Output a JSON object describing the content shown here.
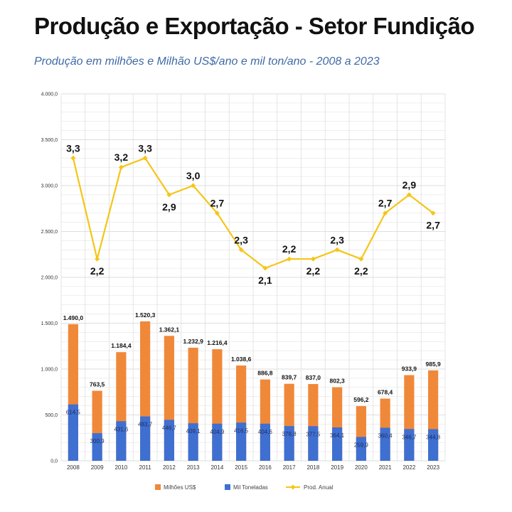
{
  "title": "Produção e Exportação - Setor Fundição",
  "subtitle": "Produção em milhões e Milhão US$/ano e mil ton/ano -  2008 a 2023",
  "colors": {
    "milhoes": "#f0883a",
    "toneladas": "#3f6fd0",
    "prod": "#f5c518",
    "grid": "#dedede"
  },
  "chart_data": {
    "type": "bar",
    "stacked": true,
    "categories": [
      "2008",
      "2009",
      "2010",
      "2011",
      "2012",
      "2013",
      "2014",
      "2015",
      "2016",
      "2017",
      "2018",
      "2019",
      "2020",
      "2021",
      "2022",
      "2023"
    ],
    "ylim": [
      0,
      4000
    ],
    "yticks": [
      "0,0",
      "500,0",
      "1.000,0",
      "1.500,0",
      "2.000,0",
      "2.500,0",
      "3.000,0",
      "3.500,0",
      "4.000,0"
    ],
    "grid": true,
    "legend": "bottom",
    "series": [
      {
        "name": "Milhões US$",
        "type": "bar",
        "totals": [
          1490.0,
          763.5,
          1184.4,
          1520.3,
          1362.1,
          1232.9,
          1216.4,
          1038.6,
          886.8,
          839.7,
          837.0,
          802.3,
          596.2,
          678.4,
          933.9,
          985.9
        ],
        "labels": [
          "1.490,0",
          "763,5",
          "1.184,4",
          "1.520,3",
          "1.362,1",
          "1.232,9",
          "1.216,4",
          "1.038,6",
          "886,8",
          "839,7",
          "837,0",
          "802,3",
          "596,2",
          "678,4",
          "933,9",
          "985,9"
        ]
      },
      {
        "name": "Mil Toneladas",
        "type": "bar",
        "values": [
          614.5,
          300.9,
          431.6,
          483.7,
          446.7,
          409.1,
          404.9,
          416.5,
          404.6,
          378.8,
          377.5,
          364.1,
          259.9,
          360.4,
          346.7,
          344.8
        ],
        "labels": [
          "614,5",
          "300,9",
          "431,6",
          "483,7",
          "446,7",
          "409,1",
          "404,9",
          "416,5",
          "404,6",
          "378,8",
          "377,5",
          "364,1",
          "259,9",
          "360,4",
          "346,7",
          "344,8"
        ]
      },
      {
        "name": "Prod. Anual",
        "type": "line",
        "values": [
          3.3,
          2.2,
          3.2,
          3.3,
          2.9,
          3.0,
          2.7,
          2.3,
          2.1,
          2.2,
          2.2,
          2.3,
          2.2,
          2.7,
          2.9,
          2.7
        ],
        "labels": [
          "3,3",
          "2,2",
          "3,2",
          "3,3",
          "2,9",
          "3,0",
          "2,7",
          "2,3",
          "2,1",
          "2,2",
          "2,2",
          "2,3",
          "2,2",
          "2,7",
          "2,9",
          "2,7"
        ],
        "label_position": [
          "above",
          "below",
          "above",
          "above",
          "below",
          "above",
          "above",
          "above",
          "below",
          "above",
          "below",
          "above",
          "below",
          "above",
          "above",
          "below"
        ]
      }
    ]
  }
}
